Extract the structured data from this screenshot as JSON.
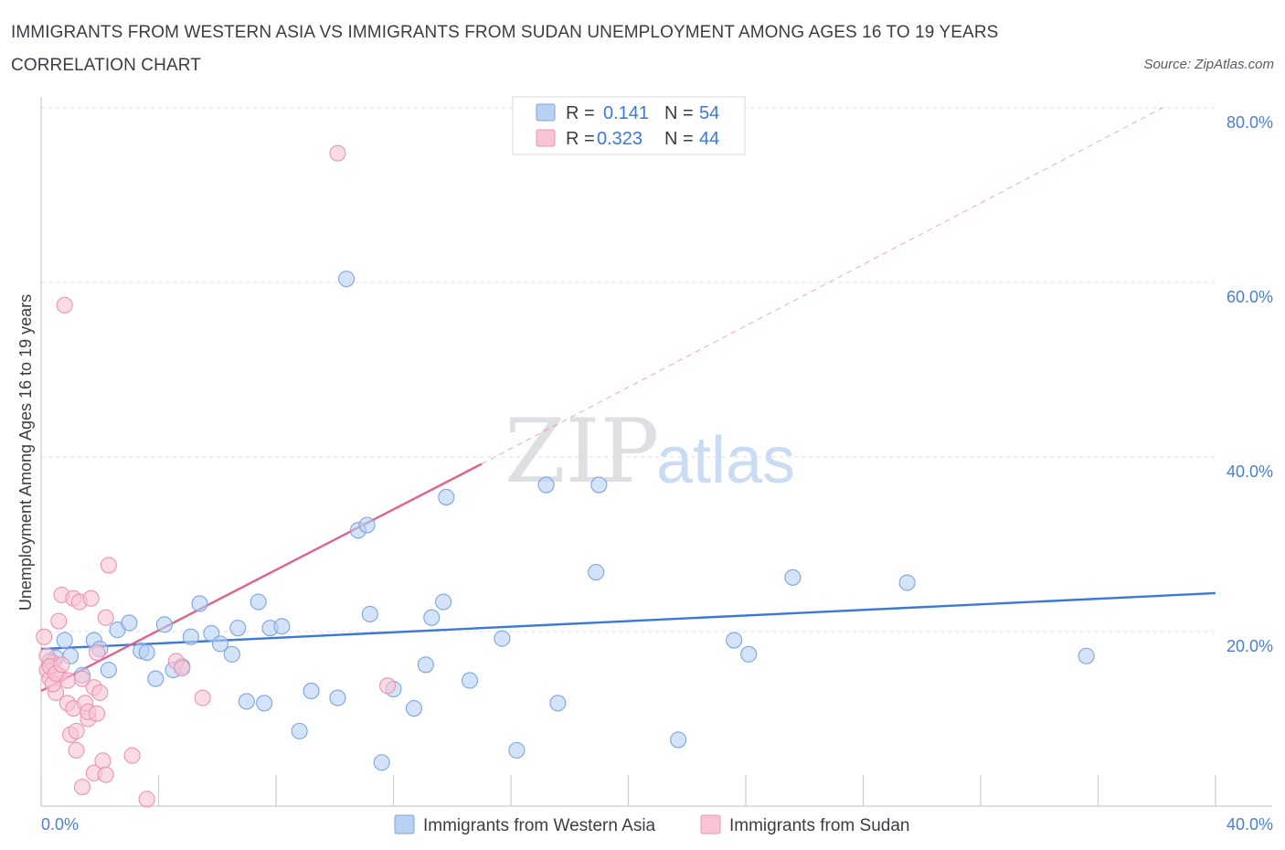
{
  "title": "IMMIGRANTS FROM WESTERN ASIA VS IMMIGRANTS FROM SUDAN UNEMPLOYMENT AMONG AGES 16 TO 19 YEARS CORRELATION CHART",
  "source": "Source: ZipAtlas.com",
  "watermark": {
    "zip": "ZIP",
    "atlas": "atlas"
  },
  "colors": {
    "blue_fill": "#b8d1f3",
    "blue_stroke": "#7aa6e0",
    "blue_line": "#3b78d8",
    "pink_fill": "#f8c4d4",
    "pink_stroke": "#eb94b2",
    "pink_line": "#e0608e",
    "grid": "#dcdfe4",
    "axis": "#c9ccd2"
  },
  "legend": {
    "rows": [
      {
        "r_label": "R =",
        "r_value": "0.141",
        "n_label": "N =",
        "n_value": "54"
      },
      {
        "r_label": "R =",
        "r_value": "0.323",
        "n_label": "N =",
        "n_value": "44"
      }
    ]
  },
  "chart_data": {
    "type": "scatter",
    "title": "IMMIGRANTS FROM WESTERN ASIA VS IMMIGRANTS FROM SUDAN UNEMPLOYMENT AMONG AGES 16 TO 19 YEARS CORRELATION CHART",
    "xlabel": "",
    "ylabel": "Unemployment Among Ages 16 to 19 years",
    "xlim": [
      0,
      40
    ],
    "ylim": [
      0,
      80
    ],
    "x_tick_labels": [
      "0.0%",
      "40.0%"
    ],
    "y_tick_labels": [
      "20.0%",
      "40.0%",
      "60.0%",
      "80.0%"
    ],
    "y_ticks": [
      20,
      40,
      60,
      80
    ],
    "grid": true,
    "legend_position": "top-center",
    "series": [
      {
        "name": "Immigrants from Western Asia",
        "color": "#b8d1f3",
        "r": 0.141,
        "n": 54,
        "trend": {
          "x": [
            0,
            40
          ],
          "y": [
            18.0,
            24.4
          ],
          "dashed_extension": false
        },
        "points": [
          [
            0.5,
            17.0
          ],
          [
            0.8,
            19.0
          ],
          [
            1.0,
            17.2
          ],
          [
            1.4,
            15.0
          ],
          [
            1.8,
            19.0
          ],
          [
            2.0,
            18.0
          ],
          [
            2.3,
            15.6
          ],
          [
            2.6,
            20.2
          ],
          [
            3.0,
            21.0
          ],
          [
            3.4,
            17.8
          ],
          [
            3.6,
            17.6
          ],
          [
            3.9,
            14.6
          ],
          [
            4.2,
            20.8
          ],
          [
            4.5,
            15.6
          ],
          [
            4.8,
            16.0
          ],
          [
            5.1,
            19.4
          ],
          [
            5.4,
            23.2
          ],
          [
            5.8,
            19.8
          ],
          [
            6.1,
            18.6
          ],
          [
            6.5,
            17.4
          ],
          [
            6.7,
            20.4
          ],
          [
            7.0,
            12.0
          ],
          [
            7.4,
            23.4
          ],
          [
            7.6,
            11.8
          ],
          [
            7.8,
            20.4
          ],
          [
            8.2,
            20.6
          ],
          [
            8.8,
            8.6
          ],
          [
            9.2,
            13.2
          ],
          [
            10.1,
            12.4
          ],
          [
            10.4,
            60.4
          ],
          [
            10.8,
            31.6
          ],
          [
            11.1,
            32.2
          ],
          [
            11.2,
            22.0
          ],
          [
            11.6,
            5.0
          ],
          [
            12.0,
            13.4
          ],
          [
            12.7,
            11.2
          ],
          [
            13.1,
            16.2
          ],
          [
            13.3,
            21.6
          ],
          [
            13.7,
            23.4
          ],
          [
            13.8,
            35.4
          ],
          [
            14.6,
            14.4
          ],
          [
            15.7,
            19.2
          ],
          [
            16.2,
            6.4
          ],
          [
            17.2,
            36.8
          ],
          [
            17.6,
            11.8
          ],
          [
            18.9,
            26.8
          ],
          [
            19.0,
            36.8
          ],
          [
            21.7,
            7.6
          ],
          [
            23.6,
            19.0
          ],
          [
            24.1,
            17.4
          ],
          [
            25.6,
            26.2
          ],
          [
            29.5,
            25.6
          ],
          [
            35.6,
            17.2
          ],
          [
            0.3,
            16.6
          ]
        ]
      },
      {
        "name": "Immigrants from Sudan",
        "color": "#f8c4d4",
        "r": 0.323,
        "n": 44,
        "trend": {
          "x": [
            0,
            15
          ],
          "y": [
            13.2,
            39.2
          ],
          "dashed_extension": {
            "x": [
              15,
              38.2
            ],
            "y": [
              39.2,
              80.0
            ]
          }
        },
        "points": [
          [
            0.1,
            19.4
          ],
          [
            0.2,
            15.6
          ],
          [
            0.3,
            14.6
          ],
          [
            0.4,
            16.4
          ],
          [
            0.5,
            13.0
          ],
          [
            0.6,
            21.2
          ],
          [
            0.6,
            15.0
          ],
          [
            0.7,
            24.2
          ],
          [
            0.8,
            57.4
          ],
          [
            0.9,
            14.4
          ],
          [
            0.9,
            11.8
          ],
          [
            1.0,
            8.2
          ],
          [
            1.1,
            11.2
          ],
          [
            1.1,
            23.8
          ],
          [
            1.2,
            8.6
          ],
          [
            1.2,
            6.4
          ],
          [
            1.3,
            23.4
          ],
          [
            1.4,
            2.2
          ],
          [
            1.4,
            14.6
          ],
          [
            1.5,
            11.8
          ],
          [
            1.6,
            10.0
          ],
          [
            1.6,
            10.8
          ],
          [
            1.7,
            23.8
          ],
          [
            1.8,
            13.6
          ],
          [
            1.8,
            3.8
          ],
          [
            1.9,
            17.6
          ],
          [
            1.9,
            10.6
          ],
          [
            2.0,
            13.0
          ],
          [
            2.1,
            5.2
          ],
          [
            2.2,
            21.6
          ],
          [
            2.2,
            3.6
          ],
          [
            2.3,
            27.6
          ],
          [
            3.1,
            5.8
          ],
          [
            3.6,
            0.8
          ],
          [
            4.6,
            16.6
          ],
          [
            4.8,
            15.8
          ],
          [
            5.5,
            12.4
          ],
          [
            10.1,
            74.8
          ],
          [
            11.8,
            13.8
          ],
          [
            0.2,
            17.2
          ],
          [
            0.4,
            14.0
          ],
          [
            0.3,
            16.0
          ],
          [
            0.5,
            15.2
          ],
          [
            0.7,
            16.2
          ]
        ]
      }
    ]
  },
  "bottom_legend": {
    "items": [
      {
        "label": "Immigrants from Western Asia"
      },
      {
        "label": "Immigrants from Sudan"
      }
    ]
  }
}
